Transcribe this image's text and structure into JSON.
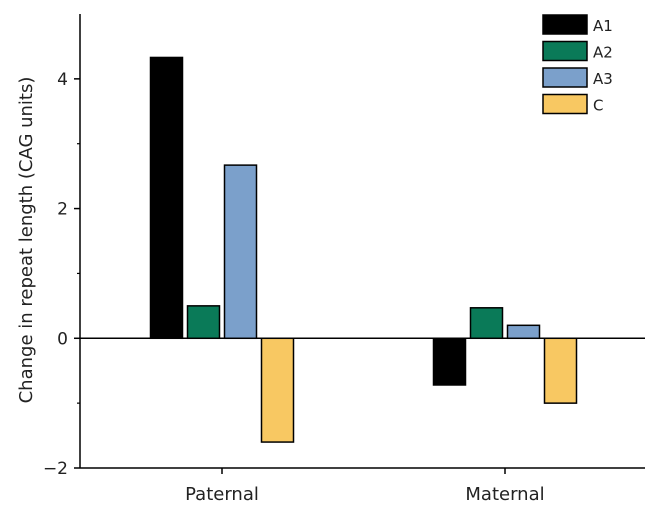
{
  "chart_data": {
    "type": "bar",
    "categories": [
      "Paternal",
      "Maternal"
    ],
    "series": [
      {
        "name": "A1",
        "color": "#000000",
        "values": [
          4.33,
          -0.72
        ]
      },
      {
        "name": "A2",
        "color": "#0a7a58",
        "values": [
          0.5,
          0.47
        ]
      },
      {
        "name": "A3",
        "color": "#7ba0cb",
        "values": [
          2.67,
          0.2
        ]
      },
      {
        "name": "C",
        "color": "#f8c862",
        "values": [
          -1.6,
          -1.0
        ]
      }
    ],
    "ylabel": "Change in repeat length (CAG units)",
    "ylim": [
      -2,
      5
    ],
    "yticks": [
      -2,
      0,
      2,
      4
    ],
    "ytick_labels": [
      "−2",
      "0",
      "2",
      "4"
    ],
    "legend": "top-right",
    "grid": false
  }
}
